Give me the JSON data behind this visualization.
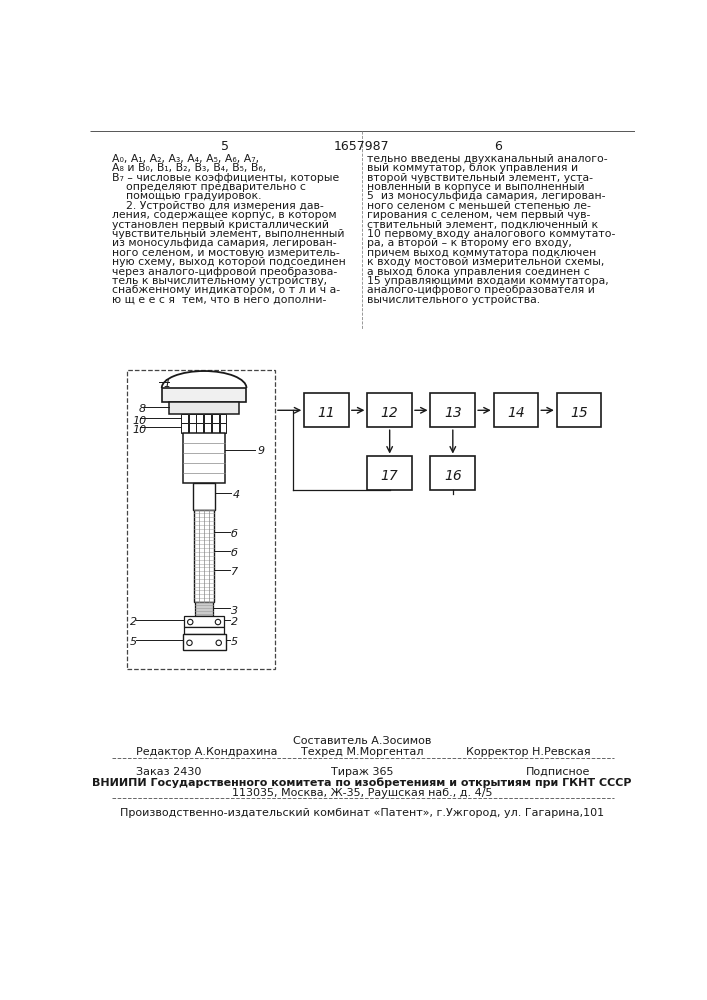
{
  "page_number_left": "5",
  "page_number_center": "1657987",
  "page_number_right": "6",
  "left_col": [
    "A₀, A₁, A₂, A₃, A₄, A₅, A₆, A₇,",
    "A₈ и B₀, B₁, B₂, B₃, B₄, B₅, B₆,",
    "B₇ – числовые коэффициенты, которые",
    "    определяют предварительно с",
    "    помощью градуировок.",
    "    2. Устройство для измерения дав-",
    "ления, содержащее корпус, в котором",
    "установлен первый кристаллический",
    "чувствительный элемент, выполненный",
    "из моносульфида самария, легирован-",
    "ного селеном, и мостовую измеритель-",
    "ную схему, выход которой подсоединен",
    "через аналого-цифровой преобразова-",
    "тель к вычислительному устройству,",
    "снабженному индикатором, о т л и ч а-",
    "ю щ е е с я  тем, что в него дополни-"
  ],
  "right_col": [
    "тельно введены двухканальный аналого-",
    "вый коммутатор, блок управления и",
    "второй чувствительный элемент, уста-",
    "новленный в корпусе и выполненный",
    "5  из моносульфида самария, легирован-",
    "ного селеном с меньшей степенью ле-",
    "гирования с селеном, чем первый чув-",
    "ствительный элемент, подключенный к",
    "10 первому входу аналогового коммутато-",
    "ра, а второй – к второму его входу,",
    "причем выход коммутатора подключен",
    "к входу мостовой измерительной схемы,",
    "а выход блока управления соединен с",
    "15 управляющими входами коммутатора,",
    "аналого-цифрового преобразователя и",
    "вычислительного устройства."
  ],
  "footer_comp": "Составитель А.Зосимов",
  "footer_editor": "Редактор А.Кондрахина",
  "footer_tech": "Техред М.Моргентал",
  "footer_corr": "Корректор Н.Ревская",
  "footer_zakaz": "Заказ 2430",
  "footer_tirazh": "Тираж 365",
  "footer_podpisnoe": "Подписное",
  "footer_vniiipi": "ВНИИПИ Государственного комитета по изобретениям и открытиям при ГКНТ СССР",
  "footer_address": "113035, Москва, Ж-35, Раушская наб., д. 4/5",
  "footer_patent": "Производственно-издательский комбинат «Патент», г.Ужгород, ул. Гагарина,101",
  "bg_color": "#ffffff"
}
